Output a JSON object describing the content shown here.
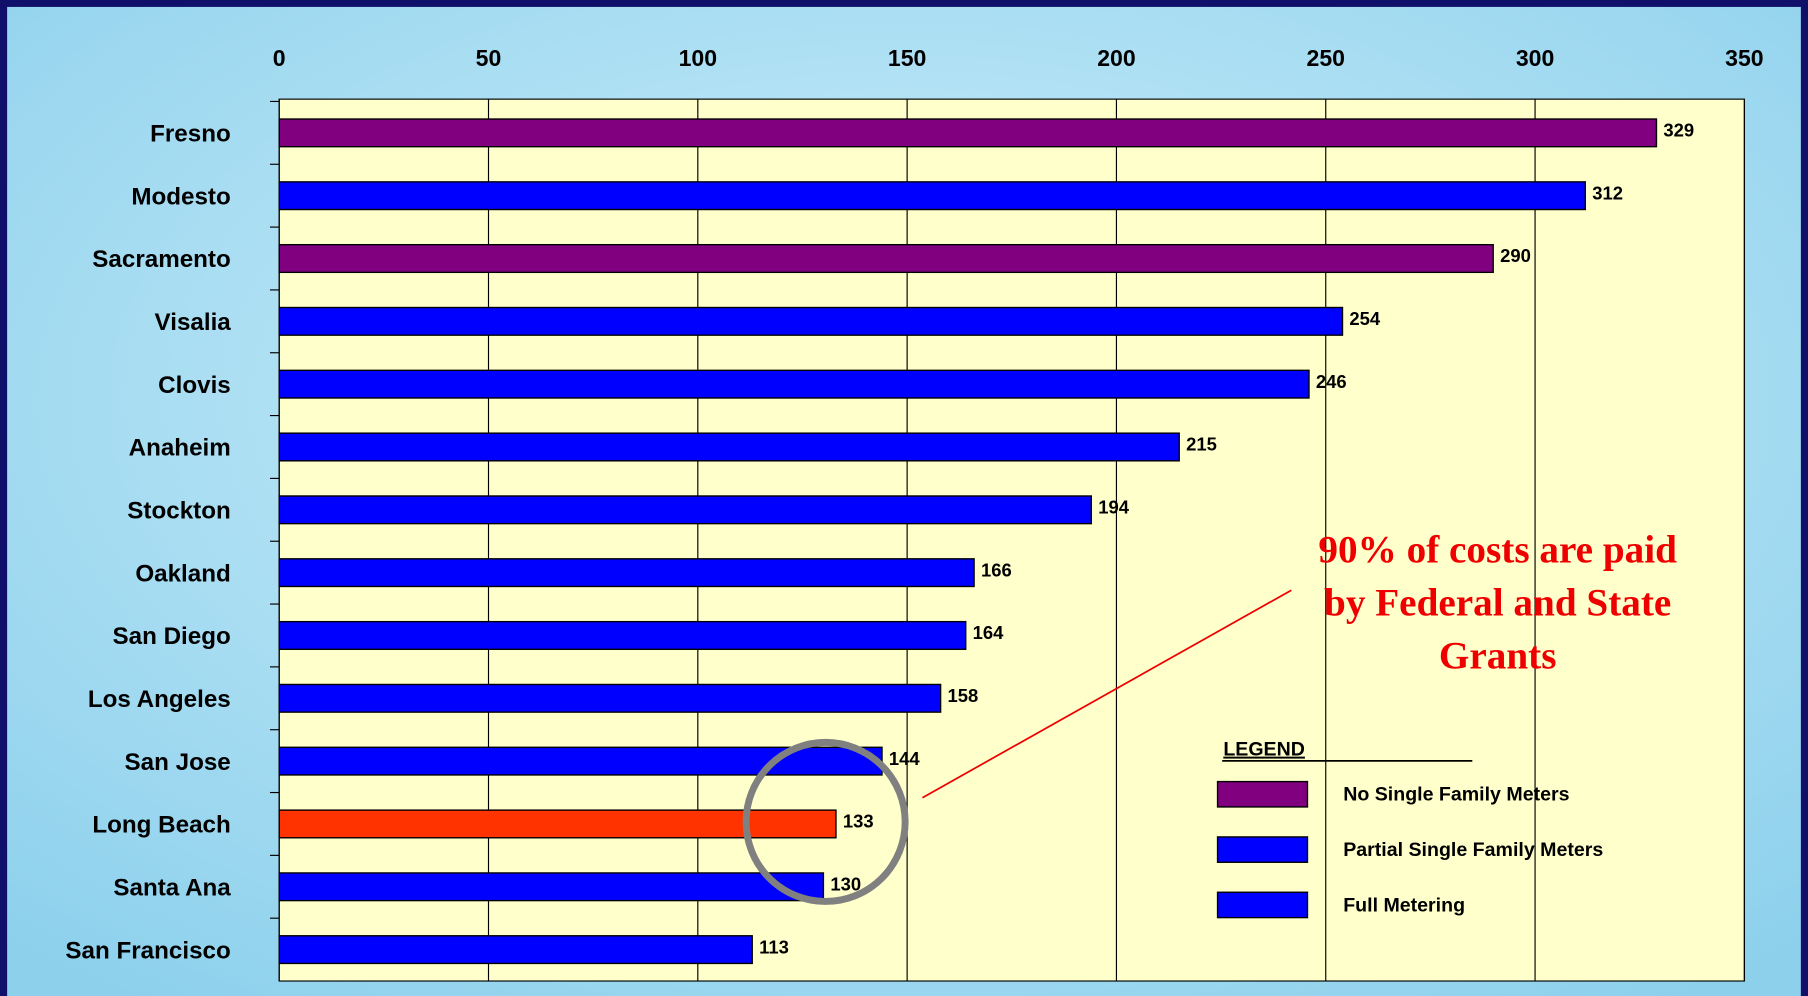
{
  "chart_data": {
    "type": "bar",
    "orientation": "horizontal",
    "categories": [
      "Fresno",
      "Modesto",
      "Sacramento",
      "Visalia",
      "Clovis",
      "Anaheim",
      "Stockton",
      "Oakland",
      "San Diego",
      "Los Angeles",
      "San Jose",
      "Long Beach",
      "Santa Ana",
      "San Francisco"
    ],
    "values": [
      329,
      312,
      290,
      254,
      246,
      215,
      194,
      166,
      164,
      158,
      144,
      133,
      130,
      113
    ],
    "colors": [
      "#800080",
      "#0000ff",
      "#800080",
      "#0000ff",
      "#0000ff",
      "#0000ff",
      "#0000ff",
      "#0000ff",
      "#0000ff",
      "#0000ff",
      "#0000ff",
      "#ff3300",
      "#0000ff",
      "#0000ff"
    ],
    "xlim": [
      0,
      350
    ],
    "xticks": [
      0,
      50,
      100,
      150,
      200,
      250,
      300,
      350
    ],
    "grid": true,
    "legend": {
      "title": "LEGEND",
      "entries": [
        {
          "name": "No Single Family Meters",
          "color": "#800080"
        },
        {
          "name": "Partial Single Family Meters",
          "color": "#0000ff"
        },
        {
          "name": "Full Metering",
          "color": "#0000ff"
        }
      ]
    },
    "annotation": [
      "90% of costs are paid",
      "by Federal and State",
      "Grants"
    ]
  }
}
